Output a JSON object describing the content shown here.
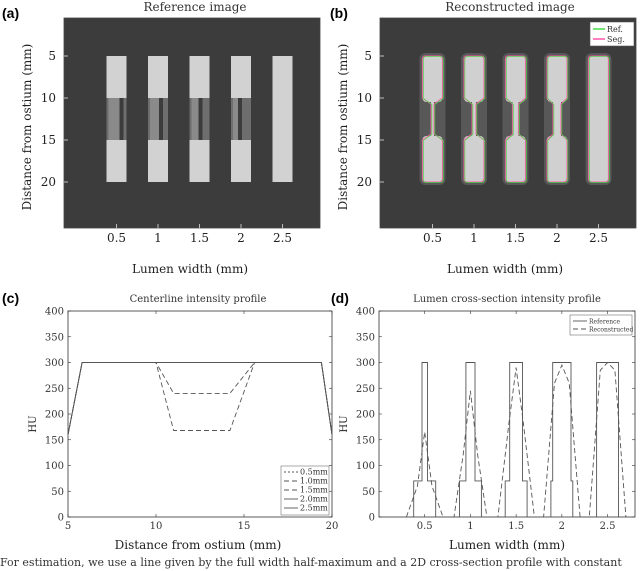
{
  "panels": {
    "a": {
      "letter": "(a)",
      "title": "Reference image",
      "xlabel": "Lumen width (mm)",
      "ylabel": "Distance from ostium (mm)"
    },
    "b": {
      "letter": "(b)",
      "title": "Reconstructed image",
      "xlabel": "Lumen width (mm)",
      "ylabel": "Distance from ostium (mm)",
      "legend": [
        "Ref.",
        "Seg."
      ]
    },
    "c": {
      "letter": "(c)",
      "title": "Centerline intensity profile",
      "xlabel": "Distance from ostium (mm)",
      "ylabel": "HU"
    },
    "d": {
      "letter": "(d)",
      "title": "Lumen cross-section intensity profile",
      "xlabel": "Lumen width (mm)",
      "ylabel": "HU"
    }
  },
  "caption": "For estimation, we use a line given by the full width half-maximum and a 2D cross-section profile with constant",
  "chart_data": [
    {
      "type": "heatmap",
      "panel": "a",
      "title": "Reference image",
      "xlabel": "Lumen width (mm)",
      "ylabel": "Distance from ostium (mm)",
      "x_ticks": [
        "0.5",
        "1",
        "1.5",
        "2",
        "2.5"
      ],
      "y_ticks": [
        "5",
        "10",
        "15",
        "20"
      ],
      "lumen_widths": [
        0.5,
        1.0,
        1.5,
        2.0,
        2.5
      ],
      "stenosis_widths": [
        0.1,
        0.2,
        0.3,
        0.4,
        2.5
      ],
      "segment_y_range": [
        5,
        20
      ],
      "stenosis_y_range": [
        10,
        15
      ],
      "colors": {
        "background": "#3c3c3c",
        "lumen": "#d2d2d2",
        "stenosis_soft": "#6e6e6e"
      }
    },
    {
      "type": "heatmap",
      "panel": "b",
      "title": "Reconstructed image",
      "xlabel": "Lumen width (mm)",
      "ylabel": "Distance from ostium (mm)",
      "x_ticks": [
        "0.5",
        "1",
        "1.5",
        "2",
        "2.5"
      ],
      "y_ticks": [
        "5",
        "10",
        "15",
        "20"
      ],
      "legend": [
        "Ref.",
        "Seg."
      ],
      "legend_position": "top-right",
      "colors": {
        "background": "#3c3c3c",
        "lumen": "#d0d0d0",
        "ref_contour": "#44dd44",
        "seg_contour": "#ff55aa"
      }
    },
    {
      "type": "line",
      "panel": "c",
      "title": "Centerline intensity profile",
      "xlabel": "Distance from ostium (mm)",
      "ylabel": "HU",
      "xlim": [
        5,
        20
      ],
      "ylim": [
        0,
        400
      ],
      "x_ticks": [
        5,
        10,
        15,
        20
      ],
      "y_ticks": [
        0,
        50,
        100,
        150,
        200,
        250,
        300,
        350,
        400
      ],
      "legend_position": "bottom-right",
      "series": [
        {
          "name": "0.5mm",
          "dash": "2,2",
          "x": [
            5,
            5.8,
            10,
            11,
            14.2,
            15.6,
            19.4,
            20
          ],
          "y": [
            160,
            300,
            300,
            300,
            300,
            300,
            300,
            160
          ]
        },
        {
          "name": "1.0mm",
          "dash": "5,3",
          "x": [
            5,
            5.8,
            10,
            11,
            14.2,
            15.6,
            19.4,
            20
          ],
          "y": [
            160,
            300,
            300,
            168,
            168,
            300,
            300,
            160
          ]
        },
        {
          "name": "1.5mm",
          "dash": "5,3",
          "x": [
            5,
            5.8,
            10,
            11,
            14.2,
            15.6,
            19.4,
            20
          ],
          "y": [
            160,
            300,
            300,
            240,
            240,
            300,
            300,
            160
          ]
        },
        {
          "name": "2.0mm",
          "dash": "",
          "x": [
            5,
            5.8,
            10,
            11,
            14.2,
            15.6,
            19.4,
            20
          ],
          "y": [
            160,
            300,
            300,
            300,
            300,
            300,
            300,
            160
          ]
        },
        {
          "name": "2.5mm",
          "dash": "",
          "x": [
            5,
            5.8,
            10,
            11,
            14.2,
            15.6,
            19.4,
            20
          ],
          "y": [
            160,
            300,
            300,
            300,
            300,
            300,
            300,
            160
          ]
        }
      ]
    },
    {
      "type": "line",
      "panel": "d",
      "title": "Lumen cross-section intensity profile",
      "xlabel": "Lumen width (mm)",
      "ylabel": "HU",
      "xlim": [
        0,
        2.8
      ],
      "ylim": [
        0,
        400
      ],
      "x_ticks": [
        0.5,
        1,
        1.5,
        2,
        2.5
      ],
      "y_ticks": [
        0,
        50,
        100,
        150,
        200,
        250,
        300,
        350,
        400
      ],
      "legend_position": "top-right",
      "series": [
        {
          "name": "Reference",
          "dash": "",
          "x": [
            0.35,
            0.38,
            0.38,
            0.47,
            0.47,
            0.53,
            0.53,
            0.62,
            0.62,
            0.85,
            0.88,
            0.88,
            0.95,
            0.95,
            1.05,
            1.05,
            1.12,
            1.12,
            1.35,
            1.38,
            1.38,
            1.43,
            1.43,
            1.57,
            1.57,
            1.62,
            1.62,
            1.85,
            1.88,
            1.88,
            1.9,
            1.9,
            2.1,
            2.1,
            2.12,
            2.12,
            2.35,
            2.38,
            2.38,
            2.62,
            2.62,
            2.65
          ],
          "y": [
            0,
            0,
            70,
            70,
            300,
            300,
            70,
            70,
            0,
            0,
            0,
            70,
            70,
            300,
            300,
            70,
            70,
            0,
            0,
            0,
            70,
            70,
            300,
            300,
            70,
            70,
            0,
            0,
            0,
            70,
            70,
            300,
            300,
            70,
            70,
            0,
            0,
            0,
            300,
            300,
            0,
            0
          ]
        },
        {
          "name": "Reconstructed",
          "dash": "5,3",
          "x": [
            0.3,
            0.42,
            0.5,
            0.58,
            0.7,
            0.82,
            0.92,
            1.0,
            1.08,
            1.18,
            1.3,
            1.42,
            1.5,
            1.58,
            1.7,
            1.8,
            1.92,
            2.0,
            2.08,
            2.2,
            2.3,
            2.42,
            2.5,
            2.58,
            2.7
          ],
          "y": [
            0,
            60,
            165,
            60,
            0,
            0,
            120,
            245,
            120,
            0,
            0,
            180,
            290,
            180,
            0,
            0,
            260,
            295,
            260,
            0,
            0,
            285,
            300,
            285,
            0
          ]
        }
      ]
    }
  ]
}
